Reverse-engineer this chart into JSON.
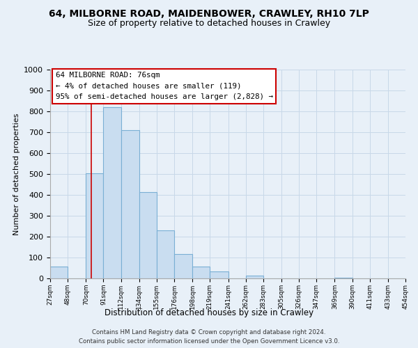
{
  "title": "64, MILBORNE ROAD, MAIDENBOWER, CRAWLEY, RH10 7LP",
  "subtitle": "Size of property relative to detached houses in Crawley",
  "xlabel": "Distribution of detached houses by size in Crawley",
  "ylabel": "Number of detached properties",
  "bin_edges": [
    27,
    48,
    70,
    91,
    112,
    134,
    155,
    176,
    198,
    219,
    241,
    262,
    283,
    305,
    326,
    347,
    369,
    390,
    411,
    433,
    454
  ],
  "bar_heights": [
    57,
    0,
    505,
    820,
    710,
    415,
    230,
    118,
    57,
    35,
    0,
    12,
    0,
    0,
    0,
    0,
    5,
    0,
    0,
    0
  ],
  "bar_fill_color": "#c9ddf0",
  "bar_edge_color": "#7aafd4",
  "property_line_x": 76,
  "property_line_color": "#cc0000",
  "ylim": [
    0,
    1000
  ],
  "yticks": [
    0,
    100,
    200,
    300,
    400,
    500,
    600,
    700,
    800,
    900,
    1000
  ],
  "tick_labels": [
    "27sqm",
    "48sqm",
    "70sqm",
    "91sqm",
    "112sqm",
    "134sqm",
    "155sqm",
    "176sqm",
    "198sqm",
    "219sqm",
    "241sqm",
    "262sqm",
    "283sqm",
    "305sqm",
    "326sqm",
    "347sqm",
    "369sqm",
    "390sqm",
    "411sqm",
    "433sqm",
    "454sqm"
  ],
  "annotation_title": "64 MILBORNE ROAD: 76sqm",
  "annotation_line1": "← 4% of detached houses are smaller (119)",
  "annotation_line2": "95% of semi-detached houses are larger (2,828) →",
  "annotation_box_facecolor": "#ffffff",
  "annotation_box_edgecolor": "#cc0000",
  "footer_line1": "Contains HM Land Registry data © Crown copyright and database right 2024.",
  "footer_line2": "Contains public sector information licensed under the Open Government Licence v3.0.",
  "grid_color": "#c8d8e8",
  "background_color": "#e8f0f8",
  "title_fontsize": 10,
  "subtitle_fontsize": 9
}
